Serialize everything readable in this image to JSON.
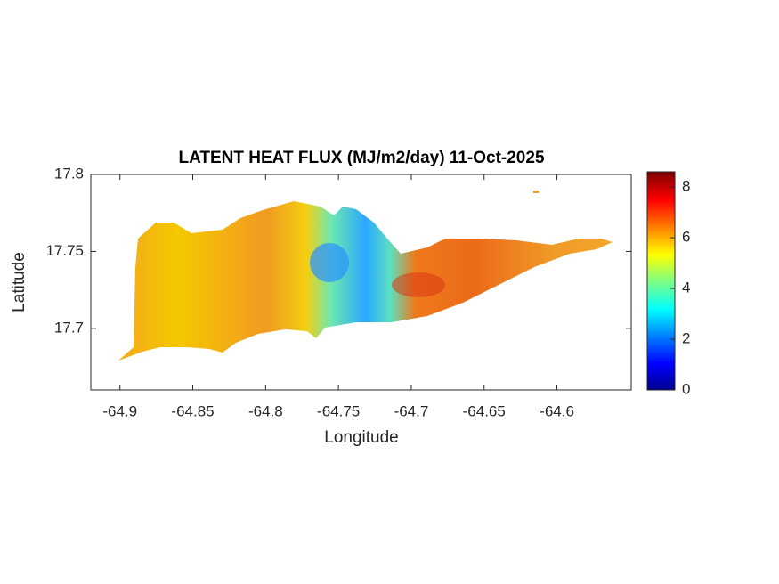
{
  "chart_data": {
    "type": "map",
    "title": "LATENT HEAT FLUX (MJ/m2/day) 11-Oct-2025",
    "x_label": "Longitude",
    "y_label": "Latitude",
    "xlim": [
      -64.92,
      -64.549
    ],
    "xticks": [
      -64.9,
      -64.85,
      -64.8,
      -64.75,
      -64.7,
      -64.65,
      -64.6
    ],
    "ylim": [
      17.66,
      17.8
    ],
    "yticks": [
      17.7,
      17.75,
      17.8
    ],
    "clim": [
      0,
      8.6
    ],
    "cticks": [
      0,
      2,
      4,
      6,
      8
    ]
  }
}
